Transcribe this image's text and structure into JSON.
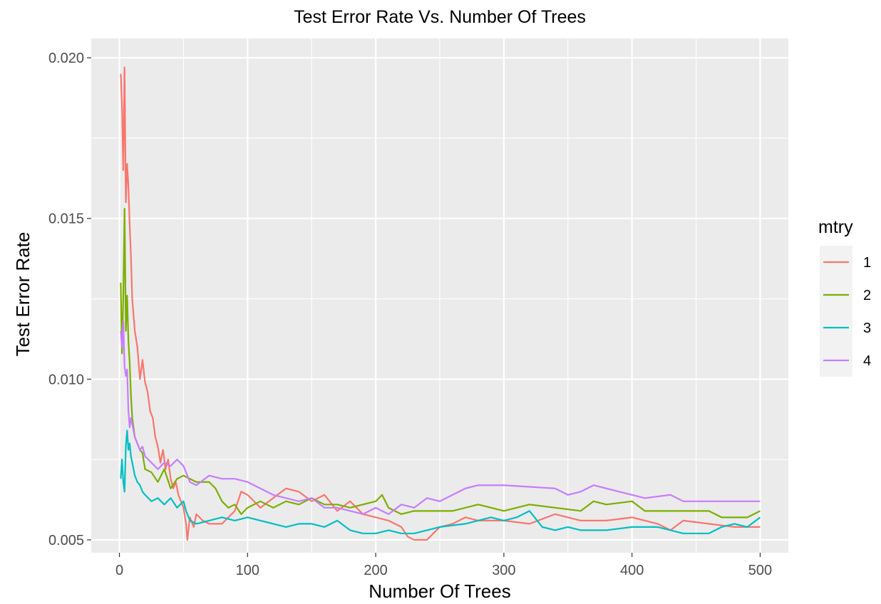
{
  "chart_data": {
    "type": "line",
    "title": "Test Error Rate Vs. Number Of Trees",
    "xlabel": "Number Of Trees",
    "ylabel": "Test Error Rate",
    "xlim": [
      -22,
      522
    ],
    "ylim": [
      0.0046,
      0.0206
    ],
    "x_ticks": [
      0,
      100,
      200,
      300,
      400,
      500
    ],
    "x_tick_labels": [
      "0",
      "100",
      "200",
      "300",
      "400",
      "500"
    ],
    "y_ticks": [
      0.005,
      0.01,
      0.015,
      0.02
    ],
    "y_tick_labels": [
      "0.005",
      "0.010",
      "0.015",
      "0.020"
    ],
    "grid": true,
    "legend": {
      "title": "mtry",
      "position": "right"
    },
    "series": [
      {
        "name": "1",
        "color": "#F8766D",
        "points": [
          [
            1,
            0.0195
          ],
          [
            2,
            0.0185
          ],
          [
            3,
            0.0165
          ],
          [
            4,
            0.0197
          ],
          [
            5,
            0.0155
          ],
          [
            6,
            0.0167
          ],
          [
            7,
            0.016
          ],
          [
            8,
            0.0148
          ],
          [
            9,
            0.0138
          ],
          [
            10,
            0.0125
          ],
          [
            12,
            0.0115
          ],
          [
            14,
            0.011
          ],
          [
            16,
            0.01
          ],
          [
            18,
            0.0106
          ],
          [
            20,
            0.0099
          ],
          [
            22,
            0.0096
          ],
          [
            24,
            0.009
          ],
          [
            26,
            0.0088
          ],
          [
            28,
            0.0082
          ],
          [
            30,
            0.0079
          ],
          [
            32,
            0.0074
          ],
          [
            34,
            0.0078
          ],
          [
            36,
            0.0072
          ],
          [
            38,
            0.0075
          ],
          [
            40,
            0.0069
          ],
          [
            42,
            0.0066
          ],
          [
            44,
            0.0068
          ],
          [
            46,
            0.0064
          ],
          [
            48,
            0.0062
          ],
          [
            50,
            0.006
          ],
          [
            52,
            0.0055
          ],
          [
            53,
            0.005
          ],
          [
            55,
            0.0057
          ],
          [
            58,
            0.0054
          ],
          [
            60,
            0.0058
          ],
          [
            65,
            0.0056
          ],
          [
            70,
            0.0055
          ],
          [
            80,
            0.0055
          ],
          [
            90,
            0.0059
          ],
          [
            95,
            0.0065
          ],
          [
            100,
            0.0064
          ],
          [
            110,
            0.006
          ],
          [
            120,
            0.0063
          ],
          [
            130,
            0.0066
          ],
          [
            140,
            0.0065
          ],
          [
            150,
            0.0062
          ],
          [
            160,
            0.0064
          ],
          [
            170,
            0.0059
          ],
          [
            180,
            0.0062
          ],
          [
            190,
            0.0058
          ],
          [
            200,
            0.0057
          ],
          [
            210,
            0.0056
          ],
          [
            220,
            0.0054
          ],
          [
            225,
            0.0051
          ],
          [
            230,
            0.005
          ],
          [
            240,
            0.005
          ],
          [
            250,
            0.0054
          ],
          [
            260,
            0.0055
          ],
          [
            270,
            0.0057
          ],
          [
            280,
            0.0056
          ],
          [
            300,
            0.0056
          ],
          [
            320,
            0.0055
          ],
          [
            340,
            0.0058
          ],
          [
            360,
            0.0056
          ],
          [
            380,
            0.0056
          ],
          [
            400,
            0.0057
          ],
          [
            420,
            0.0055
          ],
          [
            430,
            0.0053
          ],
          [
            440,
            0.0056
          ],
          [
            460,
            0.0055
          ],
          [
            480,
            0.0054
          ],
          [
            500,
            0.0054
          ]
        ]
      },
      {
        "name": "2",
        "color": "#7CAE00",
        "points": [
          [
            1,
            0.013
          ],
          [
            2,
            0.0108
          ],
          [
            3,
            0.0125
          ],
          [
            4,
            0.0153
          ],
          [
            5,
            0.0115
          ],
          [
            6,
            0.0126
          ],
          [
            7,
            0.0112
          ],
          [
            8,
            0.0105
          ],
          [
            9,
            0.0095
          ],
          [
            10,
            0.0088
          ],
          [
            12,
            0.0082
          ],
          [
            14,
            0.008
          ],
          [
            16,
            0.0078
          ],
          [
            18,
            0.0077
          ],
          [
            20,
            0.0072
          ],
          [
            25,
            0.0071
          ],
          [
            30,
            0.0068
          ],
          [
            35,
            0.0072
          ],
          [
            40,
            0.0066
          ],
          [
            45,
            0.0069
          ],
          [
            50,
            0.007
          ],
          [
            55,
            0.0069
          ],
          [
            60,
            0.0068
          ],
          [
            70,
            0.0068
          ],
          [
            75,
            0.0066
          ],
          [
            80,
            0.0062
          ],
          [
            85,
            0.006
          ],
          [
            90,
            0.0061
          ],
          [
            95,
            0.0058
          ],
          [
            100,
            0.006
          ],
          [
            110,
            0.0062
          ],
          [
            120,
            0.006
          ],
          [
            130,
            0.0062
          ],
          [
            140,
            0.0061
          ],
          [
            150,
            0.0063
          ],
          [
            160,
            0.0061
          ],
          [
            170,
            0.0061
          ],
          [
            180,
            0.006
          ],
          [
            190,
            0.0061
          ],
          [
            200,
            0.0062
          ],
          [
            205,
            0.0064
          ],
          [
            210,
            0.006
          ],
          [
            220,
            0.0058
          ],
          [
            230,
            0.0059
          ],
          [
            260,
            0.0059
          ],
          [
            280,
            0.0061
          ],
          [
            300,
            0.0059
          ],
          [
            320,
            0.0061
          ],
          [
            340,
            0.006
          ],
          [
            360,
            0.0059
          ],
          [
            370,
            0.0062
          ],
          [
            380,
            0.0061
          ],
          [
            400,
            0.0062
          ],
          [
            410,
            0.0059
          ],
          [
            440,
            0.0059
          ],
          [
            460,
            0.0059
          ],
          [
            470,
            0.0057
          ],
          [
            490,
            0.0057
          ],
          [
            500,
            0.0059
          ]
        ]
      },
      {
        "name": "3",
        "color": "#00BFC4",
        "points": [
          [
            1,
            0.0069
          ],
          [
            2,
            0.0075
          ],
          [
            3,
            0.0068
          ],
          [
            4,
            0.0065
          ],
          [
            5,
            0.0079
          ],
          [
            6,
            0.0084
          ],
          [
            7,
            0.0078
          ],
          [
            8,
            0.008
          ],
          [
            9,
            0.0076
          ],
          [
            10,
            0.0074
          ],
          [
            12,
            0.007
          ],
          [
            14,
            0.0068
          ],
          [
            16,
            0.0067
          ],
          [
            18,
            0.0065
          ],
          [
            20,
            0.0064
          ],
          [
            25,
            0.0062
          ],
          [
            30,
            0.0063
          ],
          [
            35,
            0.0061
          ],
          [
            40,
            0.0063
          ],
          [
            45,
            0.006
          ],
          [
            50,
            0.0062
          ],
          [
            52,
            0.0059
          ],
          [
            55,
            0.0056
          ],
          [
            60,
            0.0055
          ],
          [
            70,
            0.0056
          ],
          [
            80,
            0.0057
          ],
          [
            90,
            0.0056
          ],
          [
            100,
            0.0057
          ],
          [
            110,
            0.0056
          ],
          [
            120,
            0.0055
          ],
          [
            130,
            0.0054
          ],
          [
            140,
            0.0055
          ],
          [
            150,
            0.0055
          ],
          [
            160,
            0.0054
          ],
          [
            170,
            0.0056
          ],
          [
            180,
            0.0053
          ],
          [
            190,
            0.0052
          ],
          [
            200,
            0.0052
          ],
          [
            210,
            0.0053
          ],
          [
            220,
            0.0052
          ],
          [
            230,
            0.0052
          ],
          [
            250,
            0.0054
          ],
          [
            270,
            0.0055
          ],
          [
            290,
            0.0057
          ],
          [
            300,
            0.0056
          ],
          [
            310,
            0.0057
          ],
          [
            320,
            0.0059
          ],
          [
            330,
            0.0054
          ],
          [
            340,
            0.0053
          ],
          [
            350,
            0.0054
          ],
          [
            360,
            0.0053
          ],
          [
            380,
            0.0053
          ],
          [
            400,
            0.0054
          ],
          [
            420,
            0.0054
          ],
          [
            440,
            0.0052
          ],
          [
            460,
            0.0052
          ],
          [
            470,
            0.0054
          ],
          [
            480,
            0.0055
          ],
          [
            490,
            0.0054
          ],
          [
            500,
            0.0057
          ]
        ]
      },
      {
        "name": "4",
        "color": "#C77CFF",
        "points": [
          [
            1,
            0.0115
          ],
          [
            2,
            0.011
          ],
          [
            3,
            0.0118
          ],
          [
            4,
            0.0104
          ],
          [
            5,
            0.0101
          ],
          [
            6,
            0.0103
          ],
          [
            7,
            0.009
          ],
          [
            8,
            0.0085
          ],
          [
            9,
            0.0088
          ],
          [
            10,
            0.0086
          ],
          [
            12,
            0.0082
          ],
          [
            14,
            0.008
          ],
          [
            16,
            0.0078
          ],
          [
            18,
            0.0079
          ],
          [
            20,
            0.0076
          ],
          [
            25,
            0.0074
          ],
          [
            30,
            0.0072
          ],
          [
            35,
            0.0074
          ],
          [
            40,
            0.0073
          ],
          [
            45,
            0.0075
          ],
          [
            50,
            0.0073
          ],
          [
            55,
            0.0068
          ],
          [
            60,
            0.0067
          ],
          [
            70,
            0.007
          ],
          [
            80,
            0.0069
          ],
          [
            90,
            0.0069
          ],
          [
            100,
            0.0068
          ],
          [
            110,
            0.0066
          ],
          [
            120,
            0.0064
          ],
          [
            130,
            0.0063
          ],
          [
            140,
            0.0062
          ],
          [
            150,
            0.0063
          ],
          [
            160,
            0.006
          ],
          [
            170,
            0.006
          ],
          [
            180,
            0.0059
          ],
          [
            190,
            0.0058
          ],
          [
            200,
            0.006
          ],
          [
            210,
            0.0058
          ],
          [
            220,
            0.0061
          ],
          [
            230,
            0.006
          ],
          [
            240,
            0.0063
          ],
          [
            250,
            0.0062
          ],
          [
            260,
            0.0064
          ],
          [
            270,
            0.0066
          ],
          [
            280,
            0.0067
          ],
          [
            300,
            0.0067
          ],
          [
            340,
            0.0066
          ],
          [
            350,
            0.0064
          ],
          [
            360,
            0.0065
          ],
          [
            370,
            0.0067
          ],
          [
            380,
            0.0066
          ],
          [
            390,
            0.0065
          ],
          [
            400,
            0.0064
          ],
          [
            410,
            0.0063
          ],
          [
            430,
            0.0064
          ],
          [
            440,
            0.0062
          ],
          [
            500,
            0.0062
          ]
        ]
      }
    ]
  }
}
